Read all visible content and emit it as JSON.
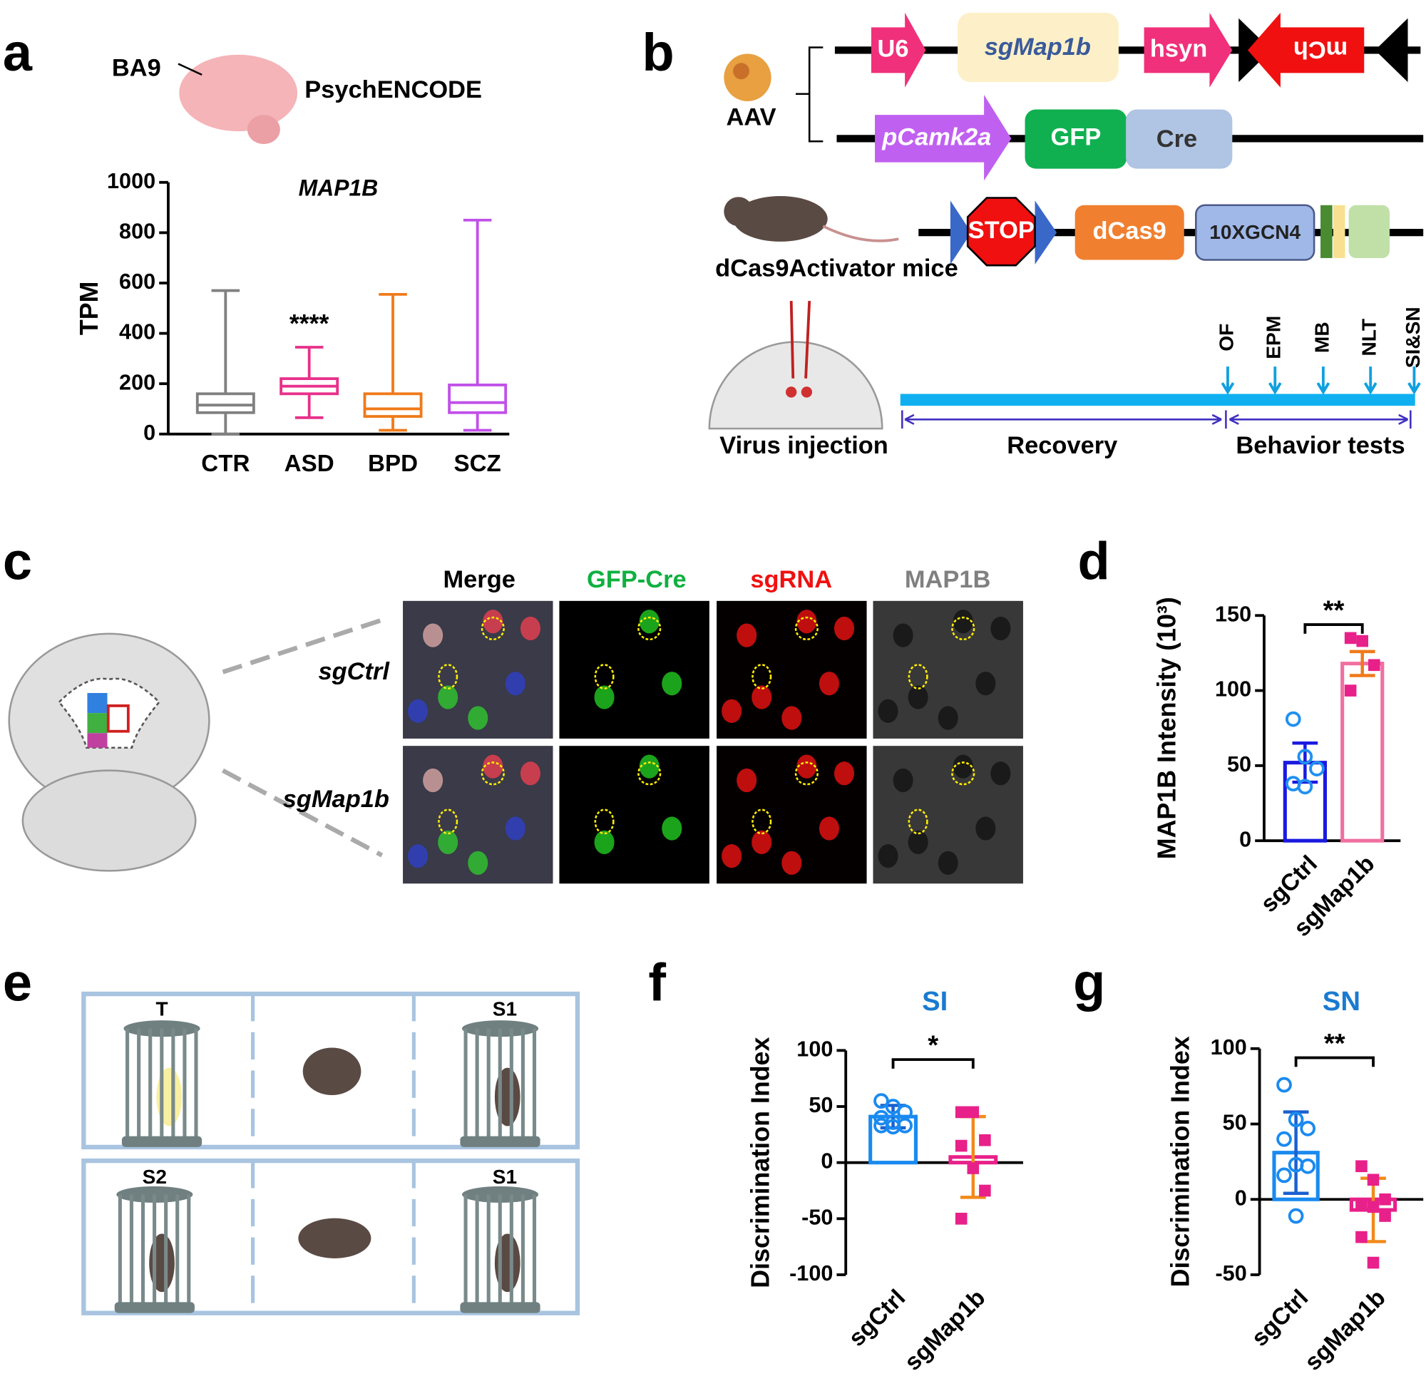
{
  "figure": {
    "panel_labels": [
      "a",
      "b",
      "c",
      "d",
      "e",
      "f",
      "g"
    ],
    "a": {
      "region": "BA9",
      "source": "PsychENCODE"
    },
    "b": {
      "vector1": [
        "U6",
        "sgMap1b",
        "hsyn",
        "mCh"
      ],
      "vector_label": "AAV",
      "vector2": [
        "pCamk2a",
        "GFP",
        "Cre"
      ],
      "mouse_construct": [
        "STOP",
        "dCas9",
        "10XGCN4"
      ],
      "mouse_label": "dCas9Activator mice",
      "timeline": [
        "Virus injection",
        "Recovery",
        "Behavior tests"
      ],
      "tests": [
        "OF",
        "EPM",
        "MB",
        "NLT",
        "SI&SN"
      ]
    },
    "c": {
      "channels": [
        "Merge",
        "GFP-Cre",
        "sgRNA",
        "MAP1B"
      ],
      "rows": [
        "sgCtrl",
        "sgMap1b"
      ]
    },
    "e": {
      "top": [
        "T",
        "S1"
      ],
      "bottom": [
        "S2",
        "S1"
      ]
    }
  },
  "chart_data": [
    {
      "type": "box",
      "title": "MAP1B",
      "ylabel": "TPM",
      "categories": [
        "CTR",
        "ASD",
        "BPD",
        "SCZ"
      ],
      "stats": [
        {
          "min": 0,
          "q1": 85,
          "median": 115,
          "q3": 160,
          "max": 570
        },
        {
          "min": 65,
          "q1": 160,
          "median": 190,
          "q3": 220,
          "max": 345
        },
        {
          "min": 15,
          "q1": 70,
          "median": 100,
          "q3": 160,
          "max": 555
        },
        {
          "min": 15,
          "q1": 85,
          "median": 125,
          "q3": 195,
          "max": 850
        }
      ],
      "colors": [
        "#808080",
        "#e8308a",
        "#f07a1a",
        "#c050e8"
      ],
      "annotation": "****",
      "ylim": [
        0,
        1000
      ],
      "yticks": [
        0,
        200,
        400,
        600,
        800,
        1000
      ]
    },
    {
      "type": "bar",
      "ylabel": "MAP1B Intensity (10³)",
      "categories": [
        "sgCtrl",
        "sgMap1b"
      ],
      "values": [
        52,
        118
      ],
      "errors": [
        13,
        8
      ],
      "points": [
        [
          81,
          56,
          48,
          38,
          36
        ],
        [
          135,
          133,
          117,
          100
        ]
      ],
      "colors": [
        "#1a1ae0",
        "#f070a0"
      ],
      "error_colors": [
        "#1a1ae0",
        "#f07a1a"
      ],
      "point_colors": [
        "#2090f0",
        "#e8208a"
      ],
      "markers": [
        "circle",
        "square"
      ],
      "significance": "**",
      "ylim": [
        0,
        150
      ],
      "yticks": [
        0,
        50,
        100,
        150
      ]
    },
    {
      "type": "bar",
      "title": "SI",
      "ylabel": "Discrimination Index",
      "categories": [
        "sgCtrl",
        "sgMap1b"
      ],
      "values": [
        41,
        5
      ],
      "errors": [
        10,
        36
      ],
      "points": [
        [
          55,
          50,
          45,
          40,
          36,
          33,
          33,
          32
        ],
        [
          45,
          45,
          20,
          15,
          -5,
          -25,
          -50
        ]
      ],
      "colors": [
        "#1a8af0",
        "#e8208a"
      ],
      "error_colors": [
        "#1a60d0",
        "#f08a1a"
      ],
      "point_colors": [
        "#1a8af0",
        "#e8208a"
      ],
      "markers": [
        "circle",
        "square"
      ],
      "significance": "*",
      "ylim": [
        -100,
        100
      ],
      "yticks": [
        -100,
        -50,
        0,
        50,
        100
      ]
    },
    {
      "type": "bar",
      "title": "SN",
      "ylabel": "Discrimination Index",
      "categories": [
        "sgCtrl",
        "sgMap1b"
      ],
      "values": [
        31,
        -7
      ],
      "errors": [
        27,
        21
      ],
      "points": [
        [
          76,
          53,
          47,
          40,
          23,
          22,
          16,
          -11
        ],
        [
          22,
          13,
          0,
          -4,
          -5,
          -11,
          -25,
          -42
        ]
      ],
      "colors": [
        "#1a8af0",
        "#e8208a"
      ],
      "error_colors": [
        "#1a60d0",
        "#f08a1a"
      ],
      "point_colors": [
        "#1a8af0",
        "#e8208a"
      ],
      "markers": [
        "circle",
        "square"
      ],
      "significance": "**",
      "ylim": [
        -50,
        100
      ],
      "yticks": [
        -50,
        0,
        50,
        100
      ]
    }
  ]
}
